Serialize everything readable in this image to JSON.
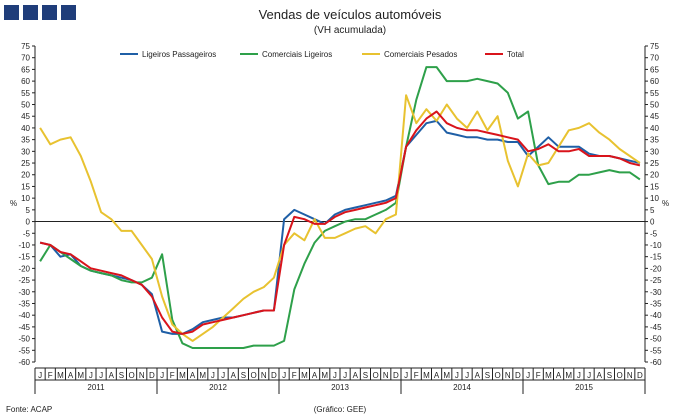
{
  "logo": {
    "icon": "logo-squares-icon",
    "color": "#1f3d7a"
  },
  "chart_data": {
    "type": "line",
    "title": "Vendas de veículos automóveis",
    "subtitle": "(VH acumulada)",
    "ylabel_left": "%",
    "ylabel_right": "%",
    "ylim": [
      -60,
      75
    ],
    "yticks": [
      75,
      70,
      65,
      60,
      55,
      50,
      45,
      40,
      35,
      30,
      25,
      20,
      15,
      10,
      5,
      0,
      -5,
      -10,
      -15,
      -20,
      -25,
      -30,
      -35,
      -40,
      -45,
      -50,
      -55,
      -60
    ],
    "month_labels": [
      "J",
      "F",
      "M",
      "A",
      "M",
      "J",
      "J",
      "A",
      "S",
      "O",
      "N",
      "D"
    ],
    "years": [
      "2011",
      "2012",
      "2013",
      "2014",
      "2015"
    ],
    "legend_position": "top",
    "source": "Fonte: ACAP",
    "credit": "(Gráfico: GEE)",
    "series": [
      {
        "name": "Ligeiros Passageiros",
        "color": "#1f5fa6",
        "values": [
          -9,
          -10,
          -15,
          -14,
          -19,
          -21,
          -22,
          -23,
          -24,
          -25,
          -27,
          -31,
          -47,
          -48,
          -48,
          -46,
          -43,
          -42,
          -41,
          -41,
          -40,
          -39,
          -38,
          -38,
          1,
          5,
          3,
          1,
          -1,
          3,
          5,
          6,
          7,
          8,
          9,
          11,
          32,
          37,
          42,
          43,
          38,
          37,
          36,
          36,
          35,
          35,
          34,
          34,
          28,
          32,
          36,
          32,
          32,
          32,
          29,
          28,
          28,
          27,
          26,
          25
        ]
      },
      {
        "name": "Comerciais Ligeiros",
        "color": "#2ea04a",
        "values": [
          -17,
          -10,
          -13,
          -16,
          -19,
          -21,
          -22,
          -23,
          -25,
          -26,
          -26,
          -24,
          -14,
          -42,
          -52,
          -54,
          -54,
          -54,
          -54,
          -54,
          -54,
          -53,
          -53,
          -53,
          -51,
          -29,
          -18,
          -9,
          -4,
          -2,
          0,
          1,
          1,
          3,
          5,
          8,
          32,
          52,
          66,
          66,
          60,
          60,
          60,
          61,
          60,
          59,
          55,
          44,
          47,
          24,
          16,
          17,
          17,
          20,
          20,
          21,
          22,
          21,
          21,
          18
        ]
      },
      {
        "name": "Comerciais Pesados",
        "color": "#e8c230",
        "values": [
          40,
          33,
          35,
          36,
          28,
          17,
          4,
          1,
          -4,
          -4,
          -10,
          -16,
          -32,
          -44,
          -48,
          -51,
          -48,
          -45,
          -41,
          -37,
          -33,
          -30,
          -28,
          -24,
          -10,
          -5,
          -8,
          1,
          -7,
          -7,
          -5,
          -3,
          -2,
          -5,
          1,
          3,
          54,
          42,
          48,
          43,
          50,
          44,
          40,
          47,
          39,
          45,
          26,
          15,
          29,
          24,
          25,
          32,
          39,
          40,
          42,
          38,
          35,
          31,
          28,
          25
        ]
      },
      {
        "name": "Total",
        "color": "#d9141b",
        "values": [
          -9,
          -10,
          -13,
          -14,
          -17,
          -20,
          -21,
          -22,
          -23,
          -25,
          -27,
          -32,
          -41,
          -47,
          -48,
          -47,
          -44,
          -43,
          -42,
          -41,
          -40,
          -39,
          -38,
          -38,
          -10,
          2,
          1,
          -1,
          -1,
          2,
          4,
          5,
          6,
          7,
          8,
          10,
          32,
          39,
          44,
          47,
          42,
          40,
          39,
          39,
          38,
          37,
          36,
          35,
          30,
          31,
          33,
          30,
          30,
          31,
          28,
          28,
          28,
          27,
          25,
          24
        ]
      }
    ]
  }
}
